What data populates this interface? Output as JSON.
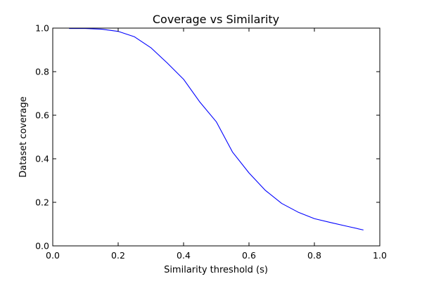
{
  "chart_data": {
    "type": "line",
    "title": "Coverage vs Similarity",
    "xlabel": "Similarity threshold (s)",
    "ylabel": "Dataset coverage",
    "xlim": [
      0.0,
      1.0
    ],
    "ylim": [
      0.0,
      1.0
    ],
    "xticks": [
      "0.0",
      "0.2",
      "0.4",
      "0.6",
      "0.8",
      "1.0"
    ],
    "yticks": [
      "0.0",
      "0.2",
      "0.4",
      "0.6",
      "0.8",
      "1.0"
    ],
    "grid": false,
    "series": [
      {
        "color": "#0000ff",
        "x": [
          0.05,
          0.1,
          0.15,
          0.2,
          0.25,
          0.3,
          0.35,
          0.4,
          0.45,
          0.5,
          0.55,
          0.6,
          0.65,
          0.7,
          0.75,
          0.8,
          0.85,
          0.9,
          0.95
        ],
        "y": [
          0.998,
          0.998,
          0.995,
          0.985,
          0.96,
          0.91,
          0.84,
          0.765,
          0.66,
          0.57,
          0.43,
          0.335,
          0.255,
          0.195,
          0.155,
          0.125,
          0.107,
          0.09,
          0.073
        ]
      }
    ]
  }
}
